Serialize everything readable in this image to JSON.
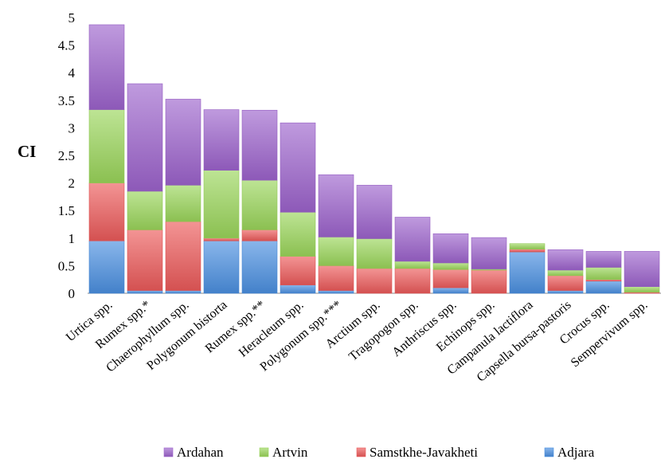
{
  "chart_data": {
    "type": "bar",
    "stacked": true,
    "ylabel": "CI",
    "xlabel": "",
    "ylim": [
      0,
      5
    ],
    "yticks": [
      "0",
      "0.5",
      "1",
      "1.5",
      "2",
      "2.5",
      "3",
      "3.5",
      "4",
      "4.5",
      "5"
    ],
    "grid": false,
    "legend_position": "bottom",
    "categories": [
      "Urtica spp.",
      "Rumex spp.*",
      "Chaerophyllum spp.",
      "Polygonum bistorta",
      "Rumex spp.**",
      "Heracleum spp.",
      "Polygonum spp.***",
      "Arctium spp.",
      "Tragopogon spp.",
      "Anthriscus spp.",
      "Echinops spp.",
      "Campanula lactiflora",
      "Capsella bursa-pastoris",
      "Crocus spp.",
      "Sempervivum spp."
    ],
    "series": [
      {
        "name": "Adjara",
        "color": "#4a8fe0",
        "values": [
          0.95,
          0.05,
          0.05,
          0.95,
          0.95,
          0.15,
          0.05,
          0.0,
          0.0,
          0.1,
          0.0,
          0.75,
          0.05,
          0.22,
          0.0
        ]
      },
      {
        "name": "Samstkhe-Javakheti",
        "color": "#ec5a5a",
        "values": [
          1.05,
          1.1,
          1.25,
          0.05,
          0.2,
          0.52,
          0.45,
          0.45,
          0.45,
          0.33,
          0.42,
          0.05,
          0.27,
          0.03,
          0.02
        ]
      },
      {
        "name": "Artvin",
        "color": "#9ad55a",
        "values": [
          1.33,
          0.7,
          0.66,
          1.23,
          0.9,
          0.8,
          0.52,
          0.54,
          0.13,
          0.12,
          0.02,
          0.1,
          0.1,
          0.22,
          0.1
        ]
      },
      {
        "name": "Ardahan",
        "color": "#9d63cc",
        "values": [
          1.54,
          1.95,
          1.56,
          1.1,
          1.27,
          1.62,
          1.13,
          0.97,
          0.8,
          0.53,
          0.57,
          0.0,
          0.37,
          0.29,
          0.64
        ]
      }
    ],
    "legend_order": [
      "Ardahan",
      "Artvin",
      "Samstkhe-Javakheti",
      "Adjara"
    ]
  }
}
